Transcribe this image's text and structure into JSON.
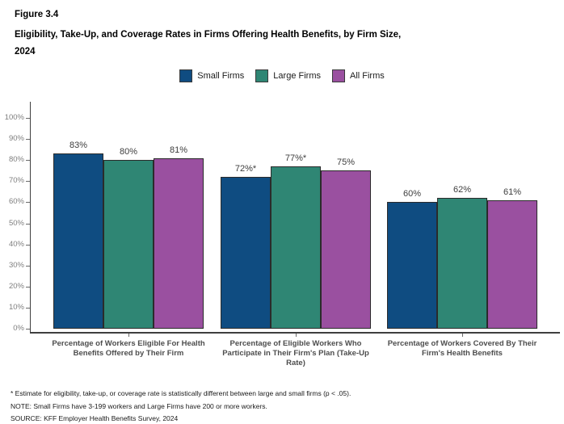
{
  "figure_label": "Figure 3.4",
  "title_lines": {
    "0": "Eligibility, Take-Up, and Coverage Rates in Firms Offering Health Benefits, by Firm Size,",
    "1": "2024"
  },
  "chart_data": {
    "type": "bar",
    "title": "Eligibility, Take-Up, and Coverage Rates in Firms Offering Health Benefits, by Firm Size, 2024",
    "categories": [
      "Percentage of Workers Eligible For Health Benefits Offered by Their Firm",
      "Percentage of Eligible Workers Who Participate in Their Firm's Plan (Take-Up Rate)",
      "Percentage of Workers Covered By Their Firm's Health Benefits"
    ],
    "series": [
      {
        "name": "Small Firms",
        "color": "#0F4C81",
        "values": [
          83,
          72,
          60
        ],
        "labels": [
          "83%",
          "72%*",
          "60%"
        ]
      },
      {
        "name": "Large Firms",
        "color": "#2F8674",
        "values": [
          80,
          77,
          62
        ],
        "labels": [
          "80%",
          "77%*",
          "62%"
        ]
      },
      {
        "name": "All Firms",
        "color": "#9A50A0",
        "values": [
          81,
          75,
          61
        ],
        "labels": [
          "81%",
          "75%",
          "61%"
        ]
      }
    ],
    "ylim": [
      0,
      100
    ],
    "yticks": [
      0,
      10,
      20,
      30,
      40,
      50,
      60,
      70,
      80,
      90,
      100
    ],
    "ytick_suffix": "%",
    "grid": false,
    "legend_position": "top-center",
    "xlabel": "",
    "ylabel": ""
  },
  "footnotes": [
    "* Estimate for eligibility, take-up, or coverage rate is statistically different between large and small firms (p < .05).",
    "NOTE: Small Firms have 3-199 workers and Large Firms have 200 or more workers.",
    "SOURCE: KFF Employer Health Benefits Survey, 2024"
  ]
}
